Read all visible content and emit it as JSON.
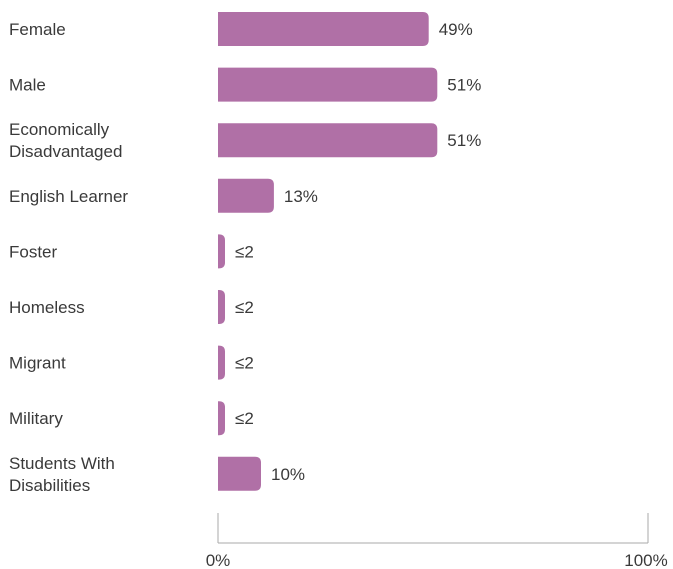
{
  "chart_data": {
    "type": "bar",
    "orientation": "horizontal",
    "categories": [
      [
        "Female"
      ],
      [
        "Male"
      ],
      [
        "Economically",
        "Disadvantaged"
      ],
      [
        "English Learner"
      ],
      [
        "Foster"
      ],
      [
        "Homeless"
      ],
      [
        "Migrant"
      ],
      [
        "Military"
      ],
      [
        "Students With",
        "Disabilities"
      ]
    ],
    "values": [
      49,
      51,
      51,
      13,
      1,
      1,
      1,
      1,
      10
    ],
    "value_labels": [
      "49%",
      "51%",
      "51%",
      "13%",
      "≤2",
      "≤2",
      "≤2",
      "≤2",
      "10%"
    ],
    "xlim": [
      0,
      100
    ],
    "x_ticks": [
      "0%",
      "100%"
    ],
    "bar_color": "#b070a6",
    "grid": false,
    "legend": "none"
  }
}
